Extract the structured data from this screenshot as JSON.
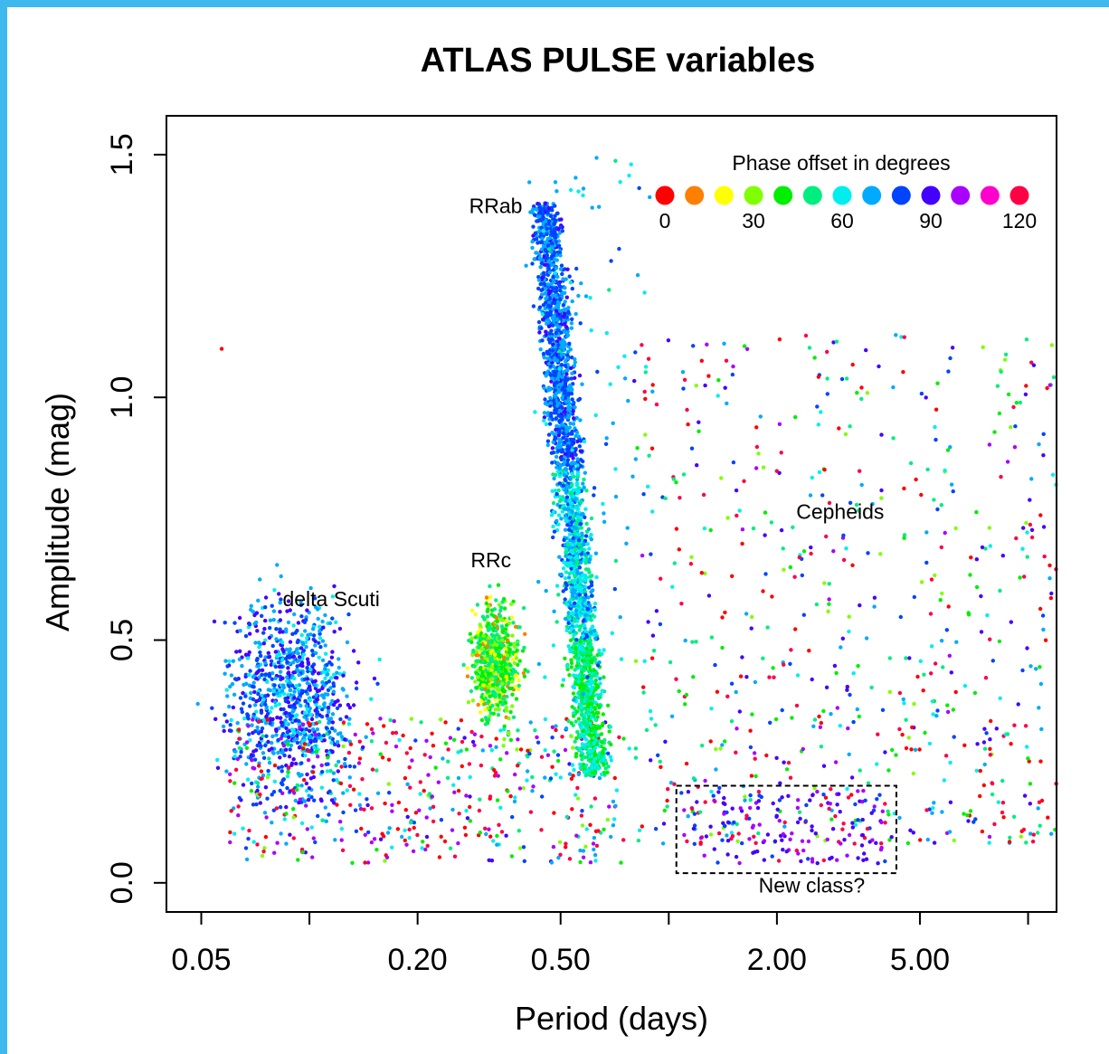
{
  "chart_data": {
    "type": "scatter",
    "title": "ATLAS PULSE variables",
    "xlabel": "Period (days)",
    "ylabel": "Amplitude (mag)",
    "x_scale": "log",
    "xlim": [
      0.04,
      12
    ],
    "ylim": [
      -0.06,
      1.58
    ],
    "x_ticks": [
      "0.05",
      "0.20",
      "0.50",
      "2.00",
      "5.00"
    ],
    "x_tick_values": [
      0.05,
      0.2,
      0.5,
      2.0,
      5.0
    ],
    "x_minor_tick_values": [
      0.1,
      1.0,
      10.0
    ],
    "y_ticks": [
      "0.0",
      "0.5",
      "1.0",
      "1.5"
    ],
    "y_tick_values": [
      0.0,
      0.5,
      1.0,
      1.5
    ],
    "grid": false,
    "legend": {
      "title": "Phase offset in degrees",
      "placement": "top-right",
      "colors": [
        "#ff0000",
        "#ff7f00",
        "#ffff00",
        "#80ff00",
        "#00ee00",
        "#00ee80",
        "#00eeee",
        "#00aaff",
        "#0044ff",
        "#4400ff",
        "#aa00ff",
        "#ff00cc",
        "#ff0044"
      ],
      "tick_labels": [
        "0",
        "30",
        "60",
        "90",
        "120"
      ],
      "tick_values": [
        0,
        30,
        60,
        90,
        120
      ]
    },
    "annotations": [
      {
        "text": "RRab",
        "x": 0.33,
        "y": 1.38
      },
      {
        "text": "RRc",
        "x": 0.32,
        "y": 0.65
      },
      {
        "text": "delta Scuti",
        "x": 0.115,
        "y": 0.57
      },
      {
        "text": "Cepheids",
        "x": 3.0,
        "y": 0.75
      },
      {
        "text": "New class?",
        "x": 2.5,
        "y": -0.02
      }
    ],
    "region_box": {
      "label": "New class?",
      "x": [
        1.05,
        4.3
      ],
      "y": [
        0.02,
        0.2
      ]
    },
    "clusters": [
      {
        "name": "RRab",
        "n": 2400,
        "period_range": [
          0.45,
          0.7
        ],
        "amp_range": [
          0.2,
          1.45
        ]
      },
      {
        "name": "RRc",
        "n": 650,
        "period_center": 0.33,
        "amp_center": 0.46
      },
      {
        "name": "delta Scuti",
        "n": 900,
        "period_center": 0.09,
        "amp_center": 0.35
      },
      {
        "name": "Cepheids",
        "n": 650,
        "period_range": [
          1.0,
          12.0
        ],
        "amp_range": [
          0.1,
          1.1
        ]
      },
      {
        "name": "New class?",
        "n": 160,
        "period_range": [
          1.1,
          4.0
        ],
        "amp_range": [
          0.04,
          0.19
        ]
      }
    ]
  }
}
